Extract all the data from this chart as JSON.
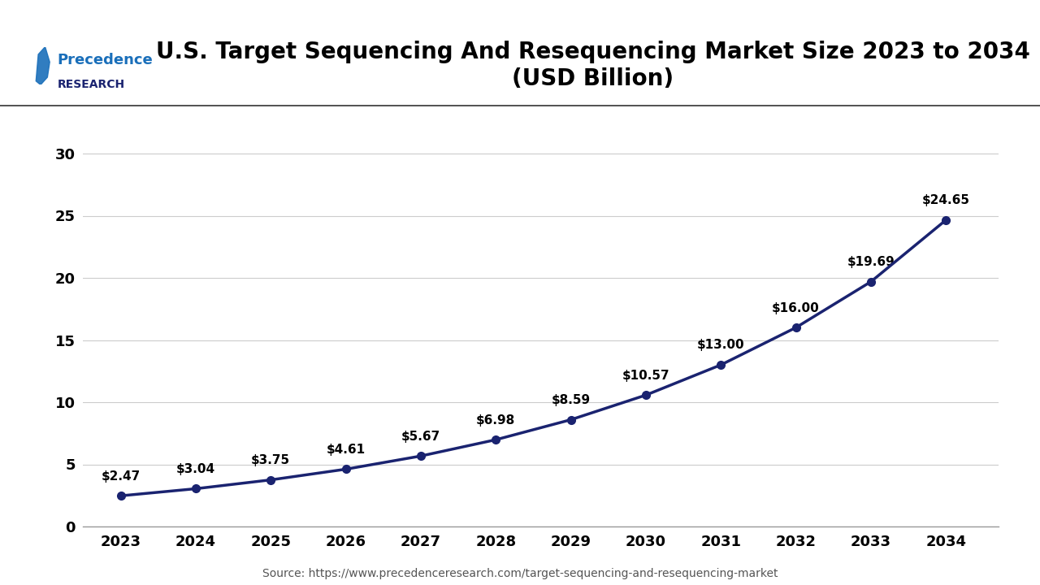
{
  "title_line1": "U.S. Target Sequencing And Resequencing Market Size 2023 to 2034",
  "title_line2": "(USD Billion)",
  "source_text": "Source: https://www.precedenceresearch.com/target-sequencing-and-resequencing-market",
  "years": [
    2023,
    2024,
    2025,
    2026,
    2027,
    2028,
    2029,
    2030,
    2031,
    2032,
    2033,
    2034
  ],
  "values": [
    2.47,
    3.04,
    3.75,
    4.61,
    5.67,
    6.98,
    8.59,
    10.57,
    13.0,
    16.0,
    19.69,
    24.65
  ],
  "labels": [
    "$2.47",
    "$3.04",
    "$3.75",
    "$4.61",
    "$5.67",
    "$6.98",
    "$8.59",
    "$10.57",
    "$13.00",
    "$16.00",
    "$19.69",
    "$24.65"
  ],
  "line_color": "#1a2370",
  "marker_color": "#1a2370",
  "background_color": "#ffffff",
  "grid_color": "#cccccc",
  "yticks": [
    0,
    5,
    10,
    15,
    20,
    25,
    30
  ],
  "ylim": [
    0,
    32
  ],
  "xlim": [
    2022.5,
    2034.7
  ],
  "title_fontsize": 20,
  "label_fontsize": 11,
  "tick_fontsize": 13,
  "source_fontsize": 10,
  "line_width": 2.5,
  "marker_size": 7,
  "logo_color_p": "#1a6fba",
  "logo_color_research": "#1a2370"
}
